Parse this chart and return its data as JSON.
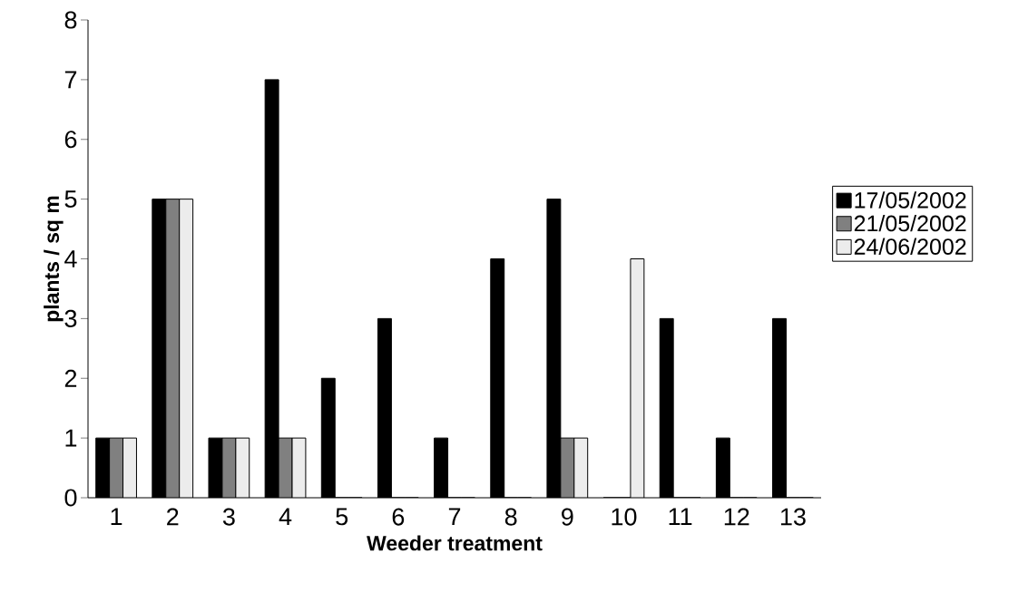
{
  "chart_data": {
    "type": "bar",
    "xlabel": "Weeder treatment",
    "ylabel": "plants / sq m",
    "categories": [
      "1",
      "2",
      "3",
      "4",
      "5",
      "6",
      "7",
      "8",
      "9",
      "10",
      "11",
      "12",
      "13"
    ],
    "series": [
      {
        "name": "17/05/2002",
        "color": "#000000",
        "values": [
          1,
          5,
          1,
          7,
          2,
          3,
          1,
          4,
          5,
          0,
          3,
          1,
          3
        ]
      },
      {
        "name": "21/05/2002",
        "color": "#808080",
        "values": [
          1,
          5,
          1,
          1,
          0,
          0,
          0,
          0,
          1,
          0,
          0,
          0,
          0
        ]
      },
      {
        "name": "24/06/2002",
        "color": "#ececec",
        "values": [
          1,
          5,
          1,
          1,
          0,
          0,
          0,
          0,
          1,
          4,
          0,
          0,
          0
        ]
      }
    ],
    "ylim": [
      0,
      8
    ],
    "yticks": [
      0,
      1,
      2,
      3,
      4,
      5,
      6,
      7,
      8
    ],
    "grid": false,
    "legend": "right"
  }
}
